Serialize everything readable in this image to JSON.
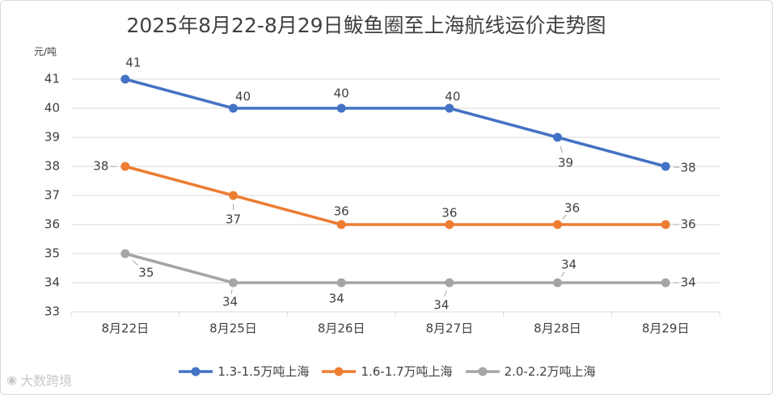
{
  "chart_data": {
    "type": "line",
    "title": "2025年8月22-8月29日鲅鱼圈至上海航线运价走势图",
    "ylabel": "元/吨",
    "ylim": [
      33,
      41
    ],
    "yticks": [
      33,
      34,
      35,
      36,
      37,
      38,
      39,
      40,
      41
    ],
    "categories": [
      "8月22日",
      "8月25日",
      "8月26日",
      "8月27日",
      "8月28日",
      "8月29日"
    ],
    "grid": true,
    "legend_position": "bottom",
    "series": [
      {
        "name": "1.3-1.5万吨上海",
        "color": "#4472c4",
        "values": [
          41,
          40,
          40,
          40,
          39,
          38
        ]
      },
      {
        "name": "1.6-1.7万吨上海",
        "color": "#ed7d31",
        "values": [
          38,
          37,
          36,
          36,
          36,
          36
        ]
      },
      {
        "name": "2.0-2.2万吨上海",
        "color": "#a5a5a5",
        "values": [
          35,
          34,
          34,
          34,
          34,
          34
        ]
      }
    ]
  },
  "watermark": {
    "text": "大数跨境",
    "icon": "weibo-icon"
  }
}
